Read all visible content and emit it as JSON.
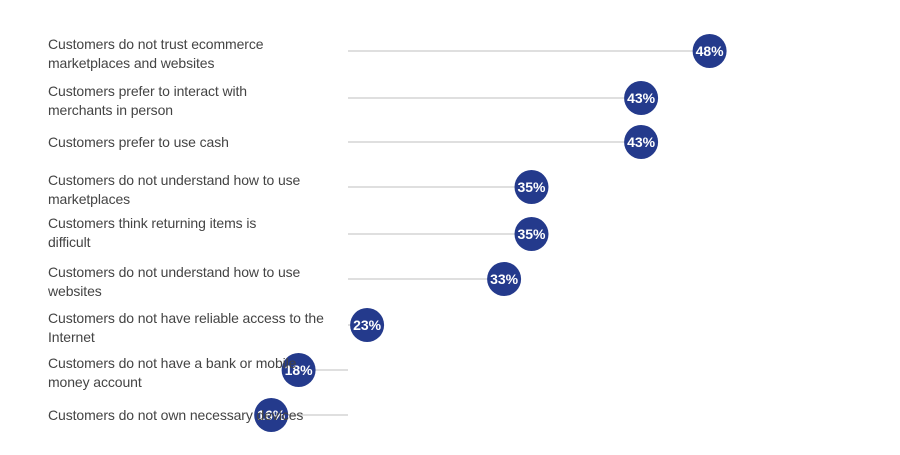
{
  "chart_data": {
    "type": "lollipop",
    "title": "",
    "xlabel": "",
    "ylabel": "",
    "unit": "%",
    "xlim": [
      0,
      48
    ],
    "categories": [
      "Customers do not trust ecommerce marketplaces and websites",
      "Customers prefer to interact with merchants in person",
      "Customers prefer to use cash",
      "Customers do not understand how to use marketplaces",
      "Customers think returning items is difficult",
      "Customers do not understand how to use websites",
      "Customers do not have reliable access to the Internet",
      "Customers do not have a bank or mobile money account",
      "Customers do not own necessary devices"
    ],
    "label_lines": [
      [
        "Customers do not trust ecommerce",
        "marketplaces and websites"
      ],
      [
        "Customers prefer to interact with",
        "merchants in person"
      ],
      [
        "Customers prefer to use cash"
      ],
      [
        "Customers do not understand how to use",
        "marketplaces"
      ],
      [
        "Customers think returning items is",
        "difficult"
      ],
      [
        "Customers do not understand how to use",
        "websites"
      ],
      [
        "Customers do not have reliable access to the",
        "Internet"
      ],
      [
        "Customers do not have a bank or mobile",
        "money account"
      ],
      [
        "Customers do not own necessary devices"
      ]
    ],
    "values": [
      48,
      43,
      43,
      35,
      35,
      33,
      23,
      18,
      16
    ],
    "value_labels": [
      "48%",
      "43%",
      "43%",
      "35%",
      "35%",
      "33%",
      "23%",
      "18%",
      "16%"
    ],
    "grid": false,
    "legend": "none",
    "colors": {
      "marker": "#243a8c",
      "line": "#cccccc",
      "label_text": "#444444",
      "value_text": "#ffffff"
    }
  }
}
